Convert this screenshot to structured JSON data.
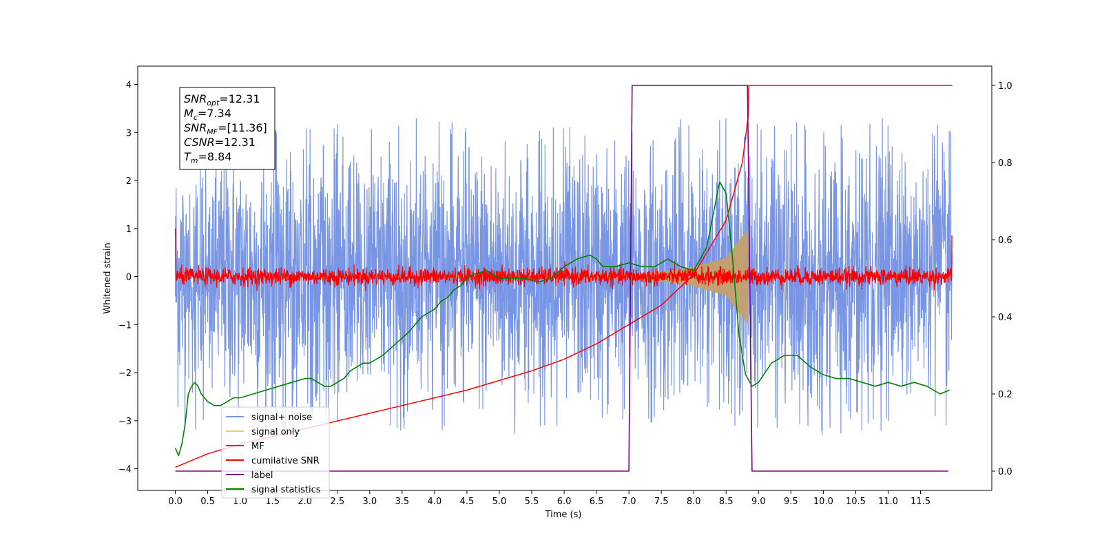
{
  "chart_data": {
    "type": "line",
    "xlabel": "Time (s)",
    "ylabel": "Whitened strain",
    "xlim": [
      -0.58,
      12.6
    ],
    "ylim": [
      -4.45,
      4.38
    ],
    "y2lim": [
      -0.05,
      1.05
    ],
    "x_ticks": [
      "0.0",
      "0.5",
      "1.0",
      "1.5",
      "2.0",
      "2.5",
      "3.0",
      "3.5",
      "4.0",
      "4.5",
      "5.0",
      "5.5",
      "6.0",
      "6.5",
      "7.0",
      "7.5",
      "8.0",
      "8.5",
      "9.0",
      "9.5",
      "10.0",
      "10.5",
      "11.0",
      "11.5"
    ],
    "y_ticks": [
      "4",
      "3",
      "2",
      "1",
      "0",
      "−1",
      "−2",
      "−3",
      "−4"
    ],
    "y2_ticks": [
      "1.0",
      "0.8",
      "0.6",
      "0.4",
      "0.2",
      "0.0"
    ],
    "grid": false,
    "legend_position": "lower-left",
    "info_box": {
      "lines": [
        {
          "sym": "SNR",
          "sub": "opt",
          "val": "=12.31"
        },
        {
          "sym": "M",
          "sub": "c",
          "val": "=7.34"
        },
        {
          "sym": "SNR",
          "sub": "MF",
          "val": "=[11.36]"
        },
        {
          "sym": "CSNR",
          "sub": "",
          "val": "=12.31"
        },
        {
          "sym": "T",
          "sub": "m",
          "val": "=8.84"
        }
      ]
    },
    "series": [
      {
        "name": "signal+ noise",
        "color": "#7895e6",
        "axis": "left",
        "kind": "noise",
        "x_range": [
          0.0,
          11.99
        ],
        "amplitude": 3.3
      },
      {
        "name": "signal only",
        "color": "#f2c77a",
        "axis": "left",
        "kind": "chirp",
        "x_range": [
          0.0,
          8.84
        ],
        "envelope": [
          [
            7.0,
            0.05
          ],
          [
            7.5,
            0.1
          ],
          [
            8.0,
            0.2
          ],
          [
            8.5,
            0.4
          ],
          [
            8.84,
            1.0
          ]
        ]
      },
      {
        "name": "MF",
        "color": "#ff0000",
        "axis": "left",
        "kind": "small-noise",
        "x_range": [
          0.0,
          11.99
        ],
        "amplitude": 0.3
      },
      {
        "name": "cumilative SNR",
        "color": "#ff0000",
        "axis": "right",
        "x": [
          0.0,
          0.5,
          1.0,
          1.5,
          2.0,
          2.5,
          3.0,
          3.5,
          4.0,
          4.5,
          5.0,
          5.5,
          6.0,
          6.5,
          7.0,
          7.5,
          8.0,
          8.5,
          8.75,
          8.84,
          8.85,
          11.99
        ],
        "values": [
          0.01,
          0.045,
          0.07,
          0.09,
          0.11,
          0.13,
          0.15,
          0.17,
          0.19,
          0.21,
          0.235,
          0.26,
          0.29,
          0.33,
          0.38,
          0.43,
          0.51,
          0.65,
          0.8,
          0.92,
          1.0,
          1.0
        ]
      },
      {
        "name": "label",
        "color": "#800080",
        "axis": "right",
        "x": [
          0.0,
          7.0,
          7.05,
          8.83,
          8.9,
          11.93
        ],
        "values": [
          0.0,
          0.0,
          1.0,
          1.0,
          0.0,
          0.0
        ]
      },
      {
        "name": "signal statistics",
        "color": "#008000",
        "axis": "right",
        "x": [
          0.0,
          0.05,
          0.1,
          0.15,
          0.2,
          0.25,
          0.3,
          0.35,
          0.4,
          0.5,
          0.6,
          0.7,
          0.8,
          0.9,
          1.0,
          1.2,
          1.4,
          1.6,
          1.8,
          2.0,
          2.1,
          2.2,
          2.3,
          2.4,
          2.5,
          2.6,
          2.7,
          2.8,
          2.9,
          3.0,
          3.2,
          3.4,
          3.6,
          3.8,
          4.0,
          4.1,
          4.2,
          4.3,
          4.4,
          4.5,
          4.6,
          4.8,
          5.0,
          5.2,
          5.4,
          5.6,
          5.8,
          6.0,
          6.2,
          6.4,
          6.5,
          6.6,
          6.8,
          7.0,
          7.2,
          7.4,
          7.6,
          7.8,
          8.0,
          8.2,
          8.4,
          8.5,
          8.6,
          8.7,
          8.8,
          8.9,
          9.0,
          9.2,
          9.4,
          9.6,
          9.8,
          10.0,
          10.2,
          10.4,
          10.6,
          10.8,
          11.0,
          11.2,
          11.4,
          11.6,
          11.8,
          11.95
        ],
        "values": [
          0.06,
          0.04,
          0.07,
          0.12,
          0.2,
          0.22,
          0.23,
          0.22,
          0.2,
          0.18,
          0.17,
          0.17,
          0.18,
          0.19,
          0.19,
          0.2,
          0.21,
          0.22,
          0.23,
          0.24,
          0.24,
          0.23,
          0.22,
          0.22,
          0.23,
          0.24,
          0.26,
          0.27,
          0.28,
          0.28,
          0.3,
          0.33,
          0.36,
          0.4,
          0.42,
          0.44,
          0.45,
          0.47,
          0.48,
          0.5,
          0.51,
          0.52,
          0.5,
          0.5,
          0.5,
          0.49,
          0.5,
          0.53,
          0.55,
          0.56,
          0.55,
          0.53,
          0.53,
          0.54,
          0.53,
          0.53,
          0.55,
          0.53,
          0.52,
          0.58,
          0.75,
          0.72,
          0.55,
          0.35,
          0.25,
          0.22,
          0.23,
          0.28,
          0.3,
          0.3,
          0.27,
          0.25,
          0.24,
          0.24,
          0.23,
          0.22,
          0.23,
          0.22,
          0.23,
          0.22,
          0.2,
          0.21
        ]
      }
    ]
  }
}
